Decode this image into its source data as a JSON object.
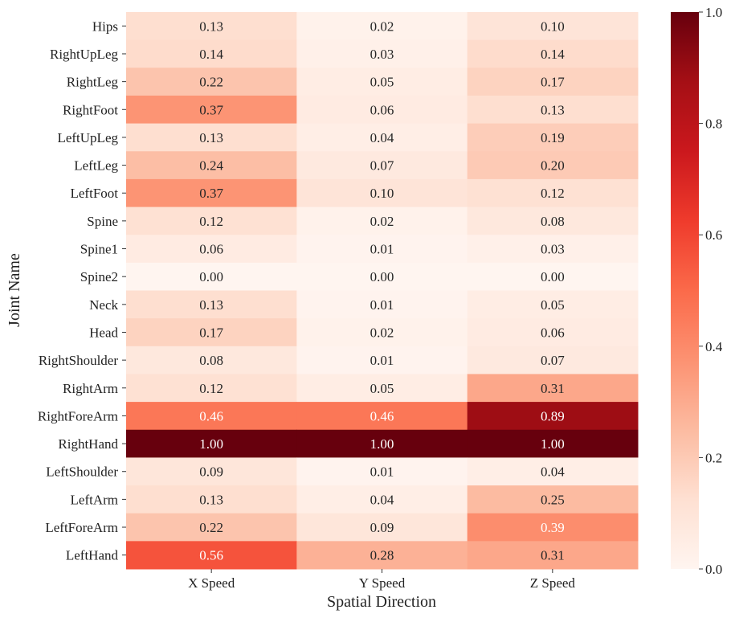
{
  "chart_data": {
    "type": "heatmap",
    "xlabel": "Spatial Direction",
    "ylabel": "Joint Name",
    "columns": [
      "X Speed",
      "Y Speed",
      "Z Speed"
    ],
    "rows": [
      "Hips",
      "RightUpLeg",
      "RightLeg",
      "RightFoot",
      "LeftUpLeg",
      "LeftLeg",
      "LeftFoot",
      "Spine",
      "Spine1",
      "Spine2",
      "Neck",
      "Head",
      "RightShoulder",
      "RightArm",
      "RightForeArm",
      "RightHand",
      "LeftShoulder",
      "LeftArm",
      "LeftForeArm",
      "LeftHand"
    ],
    "values": [
      [
        0.13,
        0.02,
        0.1
      ],
      [
        0.14,
        0.03,
        0.14
      ],
      [
        0.22,
        0.05,
        0.17
      ],
      [
        0.37,
        0.06,
        0.13
      ],
      [
        0.13,
        0.04,
        0.19
      ],
      [
        0.24,
        0.07,
        0.2
      ],
      [
        0.37,
        0.1,
        0.12
      ],
      [
        0.12,
        0.02,
        0.08
      ],
      [
        0.06,
        0.01,
        0.03
      ],
      [
        0.0,
        0.0,
        0.0
      ],
      [
        0.13,
        0.01,
        0.05
      ],
      [
        0.17,
        0.02,
        0.06
      ],
      [
        0.08,
        0.01,
        0.07
      ],
      [
        0.12,
        0.05,
        0.31
      ],
      [
        0.46,
        0.46,
        0.89
      ],
      [
        1.0,
        1.0,
        1.0
      ],
      [
        0.09,
        0.01,
        0.04
      ],
      [
        0.13,
        0.04,
        0.25
      ],
      [
        0.22,
        0.09,
        0.39
      ],
      [
        0.56,
        0.28,
        0.31
      ]
    ],
    "colormap": "Reds",
    "vmin": 0.0,
    "vmax": 1.0,
    "colorbar_ticks": [
      "0.0",
      "0.2",
      "0.4",
      "0.6",
      "0.8",
      "1.0"
    ],
    "colorbar_placement": "right",
    "annotations": true
  }
}
